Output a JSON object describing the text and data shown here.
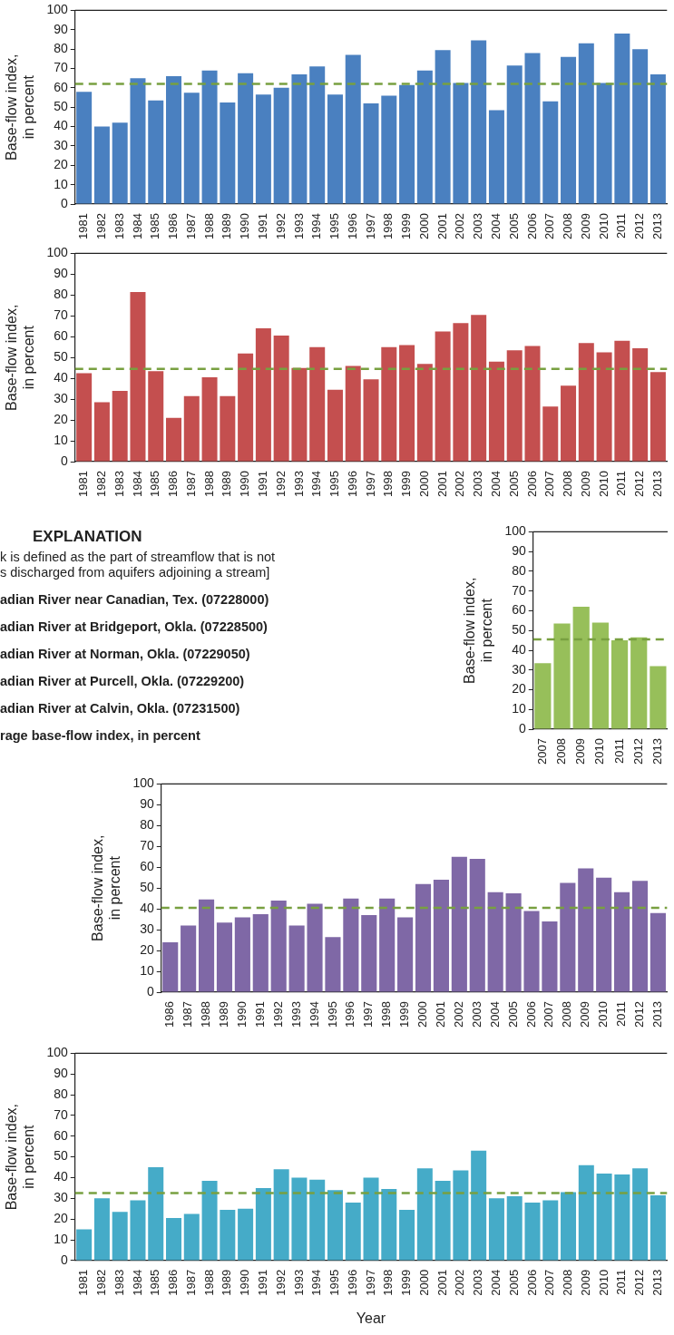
{
  "chart_data": [
    {
      "type": "bar",
      "ylabel": "Base-flow index, in percent",
      "categories": [
        "1981",
        "1982",
        "1983",
        "1984",
        "1985",
        "1986",
        "1987",
        "1988",
        "1989",
        "1990",
        "1991",
        "1992",
        "1993",
        "1994",
        "1995",
        "1996",
        "1997",
        "1998",
        "1999",
        "2000",
        "2001",
        "2002",
        "2003",
        "2004",
        "2005",
        "2006",
        "2007",
        "2008",
        "2009",
        "2010",
        "2011",
        "2012",
        "2013"
      ],
      "color": "#4a80c0",
      "values": [
        58,
        40,
        42,
        65,
        53.5,
        66,
        57.5,
        69,
        52.5,
        67.5,
        56.5,
        60,
        67,
        71,
        56.5,
        77,
        52,
        56,
        61.5,
        69,
        79.5,
        62.5,
        84.5,
        48.5,
        71.5,
        78,
        53,
        76,
        83,
        62.5,
        88,
        80,
        67
      ],
      "ylim": [
        0,
        100
      ],
      "yticks": [
        0,
        10,
        20,
        30,
        40,
        50,
        60,
        70,
        80,
        90,
        100
      ],
      "grid": false,
      "legend": false,
      "ref_lines": [
        {
          "axis": "y",
          "value": 62,
          "color": "#78a040",
          "line_style": "dashed"
        }
      ]
    },
    {
      "type": "bar",
      "ylabel": "Base-flow index, in percent",
      "categories": [
        "1981",
        "1982",
        "1983",
        "1984",
        "1985",
        "1986",
        "1987",
        "1988",
        "1989",
        "1990",
        "1991",
        "1992",
        "1993",
        "1994",
        "1995",
        "1996",
        "1997",
        "1998",
        "1999",
        "2000",
        "2001",
        "2002",
        "2003",
        "2004",
        "2005",
        "2006",
        "2007",
        "2008",
        "2009",
        "2010",
        "2011",
        "2012",
        "2013"
      ],
      "color": "#c44f4f",
      "values": [
        42.5,
        28.5,
        34,
        81.5,
        43.5,
        21,
        31.5,
        40.5,
        31.5,
        52,
        64,
        60.5,
        45,
        55,
        34.5,
        46,
        39.5,
        55,
        56,
        47,
        62.5,
        66.5,
        70.5,
        48,
        53.5,
        55.5,
        26.5,
        36.5,
        57,
        52.5,
        58,
        54.5,
        43
      ],
      "ylim": [
        0,
        100
      ],
      "yticks": [
        0,
        10,
        20,
        30,
        40,
        50,
        60,
        70,
        80,
        90,
        100
      ],
      "grid": false,
      "legend": false,
      "ref_lines": [
        {
          "axis": "y",
          "value": 44.5,
          "color": "#78a040",
          "line_style": "dashed"
        }
      ]
    },
    {
      "type": "other",
      "title": "EXPLANATION",
      "annotations": [
        "k is defined as the part of streamflow that is not",
        "s discharged from aquifers adjoining a stream]",
        "adian River near Canadian, Tex. (07228000)",
        "adian River at Bridgeport, Okla. (07228500)",
        "adian River at Norman, Okla. (07229050)",
        "adian River at Purcell, Okla. (07229200)",
        "adian River at Calvin, Okla. (07231500)",
        "rage base-flow index, in percent"
      ]
    },
    {
      "type": "bar",
      "ylabel": "Base-flow index, in percent",
      "categories": [
        "2007",
        "2008",
        "2009",
        "2010",
        "2011",
        "2012",
        "2013"
      ],
      "color": "#97bf5a",
      "values": [
        33.5,
        53.5,
        62,
        54,
        45,
        46.5,
        32
      ],
      "ylim": [
        0,
        100
      ],
      "yticks": [
        0,
        10,
        20,
        30,
        40,
        50,
        60,
        70,
        80,
        90,
        100
      ],
      "grid": false,
      "legend": false,
      "ref_lines": [
        {
          "axis": "y",
          "value": 45.5,
          "color": "#78a040",
          "line_style": "dashed"
        }
      ]
    },
    {
      "type": "bar",
      "ylabel": "Base-flow index, in percent",
      "categories": [
        "1986",
        "1987",
        "1988",
        "1989",
        "1990",
        "1991",
        "1992",
        "1993",
        "1994",
        "1995",
        "1996",
        "1997",
        "1998",
        "1999",
        "2000",
        "2001",
        "2002",
        "2003",
        "2004",
        "2005",
        "2006",
        "2007",
        "2008",
        "2009",
        "2010",
        "2011",
        "2012",
        "2013"
      ],
      "color": "#7f68a6",
      "values": [
        24,
        32,
        44.5,
        33.5,
        36,
        37.5,
        44,
        32,
        42.5,
        26.5,
        45,
        37,
        45,
        36,
        52,
        54,
        65,
        64,
        48,
        47.5,
        39,
        34,
        52.5,
        59.5,
        55,
        48,
        53.5,
        38
      ],
      "ylim": [
        0,
        100
      ],
      "yticks": [
        0,
        10,
        20,
        30,
        40,
        50,
        60,
        70,
        80,
        90,
        100
      ],
      "grid": false,
      "legend": false,
      "ref_lines": [
        {
          "axis": "y",
          "value": 40.5,
          "color": "#78a040",
          "line_style": "dashed"
        }
      ]
    },
    {
      "type": "bar",
      "ylabel": "Base-flow index, in percent",
      "xlabel": "Year",
      "categories": [
        "1981",
        "1982",
        "1983",
        "1984",
        "1985",
        "1986",
        "1987",
        "1988",
        "1989",
        "1990",
        "1991",
        "1992",
        "1993",
        "1994",
        "1995",
        "1996",
        "1997",
        "1998",
        "1999",
        "2000",
        "2001",
        "2002",
        "2003",
        "2004",
        "2005",
        "2006",
        "2007",
        "2008",
        "2009",
        "2010",
        "2011",
        "2012",
        "2013"
      ],
      "color": "#45abc8",
      "values": [
        15,
        30,
        23.5,
        29,
        45,
        20.5,
        22.5,
        38.5,
        24.5,
        25,
        35,
        44,
        40,
        39,
        34,
        28,
        40,
        34.5,
        24.5,
        44.5,
        38.5,
        43.5,
        53,
        30,
        31,
        28,
        29,
        33,
        46,
        42,
        41.5,
        44.5,
        31.5
      ],
      "ylim": [
        0,
        100
      ],
      "yticks": [
        0,
        10,
        20,
        30,
        40,
        50,
        60,
        70,
        80,
        90,
        100
      ],
      "grid": false,
      "legend": false,
      "ref_lines": [
        {
          "axis": "y",
          "value": 32.5,
          "color": "#78a040",
          "line_style": "dashed"
        }
      ]
    }
  ]
}
